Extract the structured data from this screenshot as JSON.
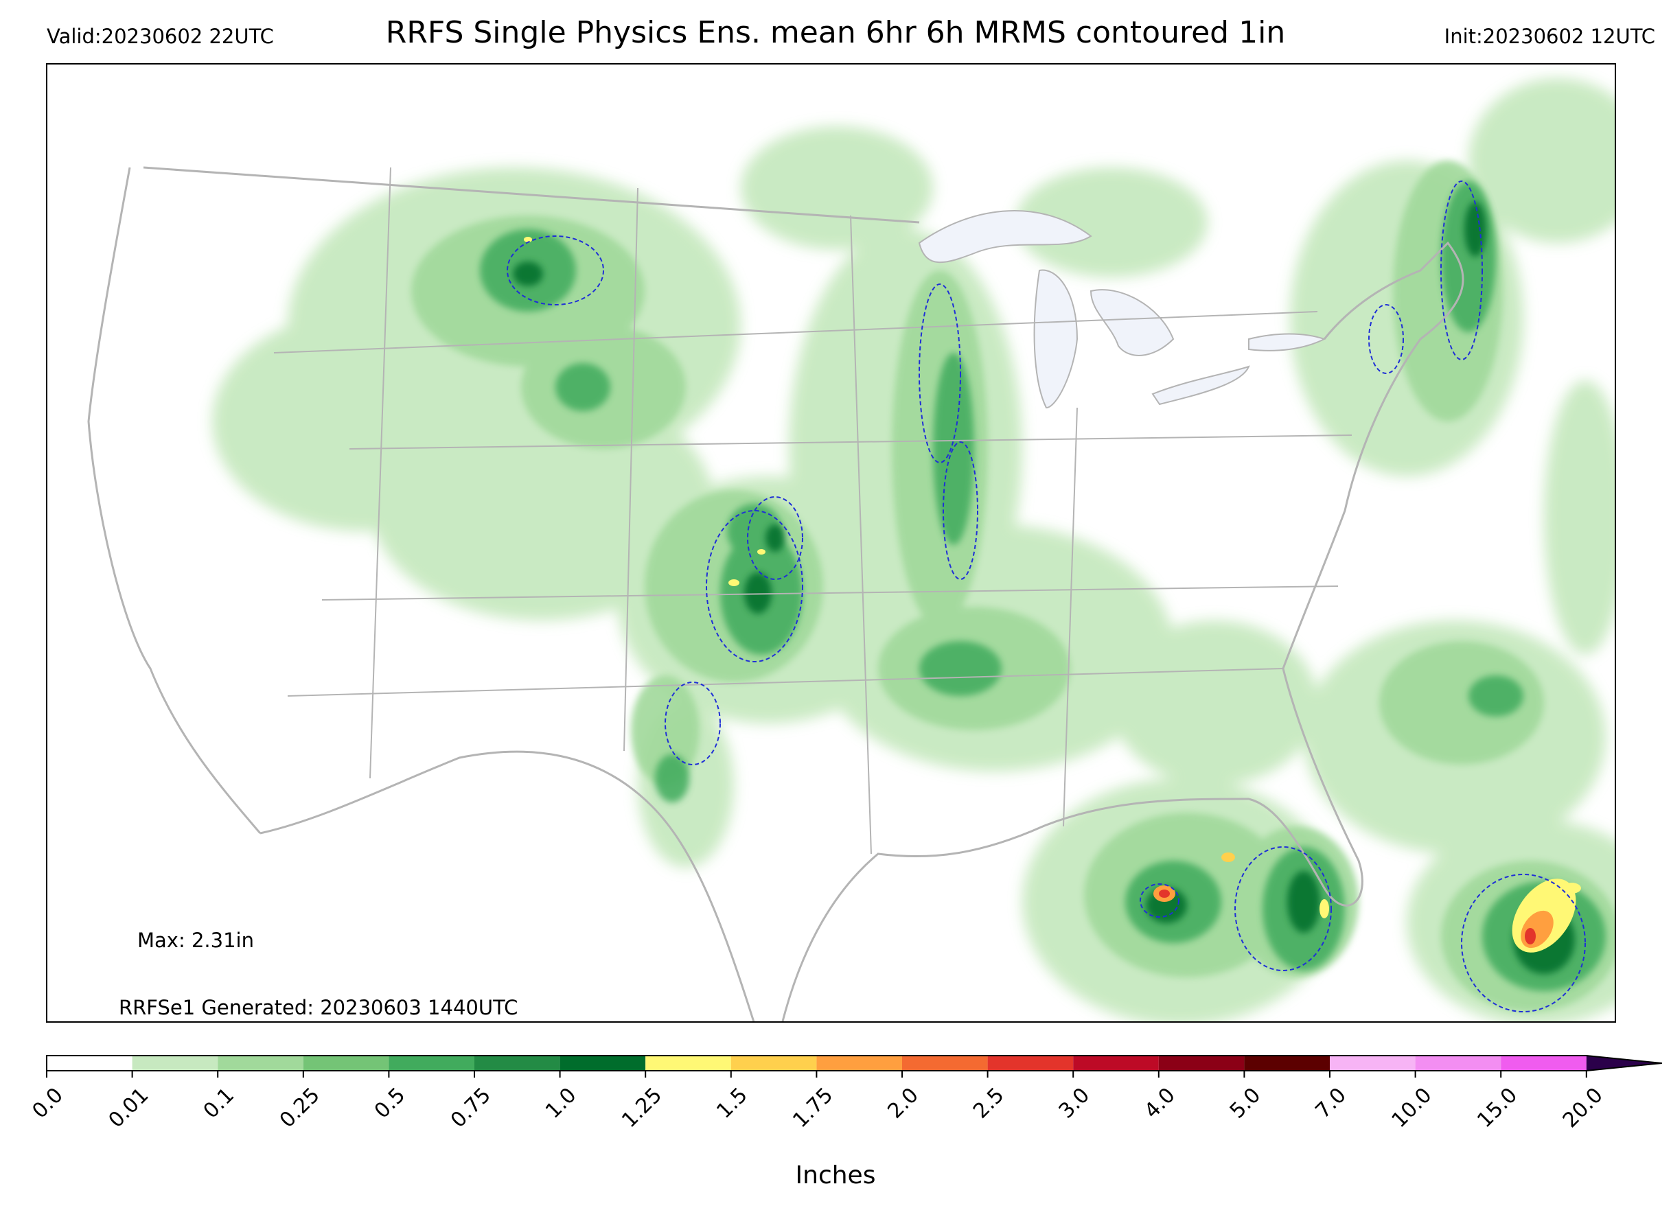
{
  "header": {
    "valid": "Valid:20230602 22UTC",
    "title": "RRFS Single Physics Ens. mean 6hr 6h MRMS contoured 1in",
    "init": "Init:20230602 12UTC"
  },
  "annotations": {
    "max": "Max: 2.31in",
    "generated": "RRFSe1 Generated: 20230603 1440UTC"
  },
  "colorbar": {
    "label": "Inches",
    "levels": [
      "0.0",
      "0.01",
      "0.1",
      "0.25",
      "0.5",
      "0.75",
      "1.0",
      "1.25",
      "1.5",
      "1.75",
      "2.0",
      "2.5",
      "3.0",
      "4.0",
      "5.0",
      "7.0",
      "10.0",
      "15.0",
      "20.0"
    ],
    "colors": [
      "#ffffff",
      "#c7e9c0",
      "#a1d99b",
      "#74c476",
      "#41ab5d",
      "#238b45",
      "#006d2c",
      "#fff875",
      "#ffd04d",
      "#ff9f3f",
      "#f46a31",
      "#e3342b",
      "#bd0a26",
      "#8b0016",
      "#5c0000",
      "#f7b4f5",
      "#f38ef2",
      "#f05cef",
      "#e02ee6",
      "#b00edc",
      "#8a0fd0"
    ],
    "extend_color": "#2b004a"
  },
  "map": {
    "lake_color": "#f0f3fa",
    "border_color": "#b4b4b4",
    "contour_color": "#1f2fd6"
  }
}
